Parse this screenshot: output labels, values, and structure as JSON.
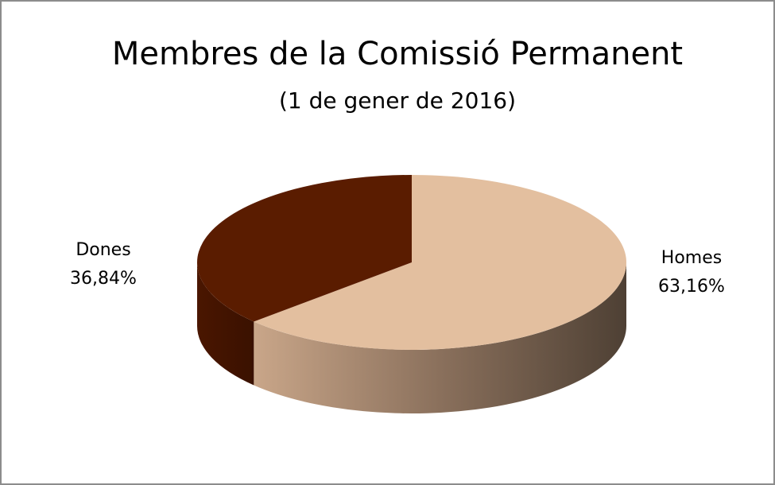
{
  "chart_data": {
    "type": "pie",
    "title": "Membres de la Comissió Permanent",
    "subtitle": "(1 de gener de 2016)",
    "categories": [
      "Homes",
      "Dones"
    ],
    "values": [
      63.16,
      36.84
    ],
    "value_labels": [
      "63,16%",
      "36,84%"
    ],
    "colors": [
      "#e3bf9f",
      "#5a1c00"
    ]
  }
}
